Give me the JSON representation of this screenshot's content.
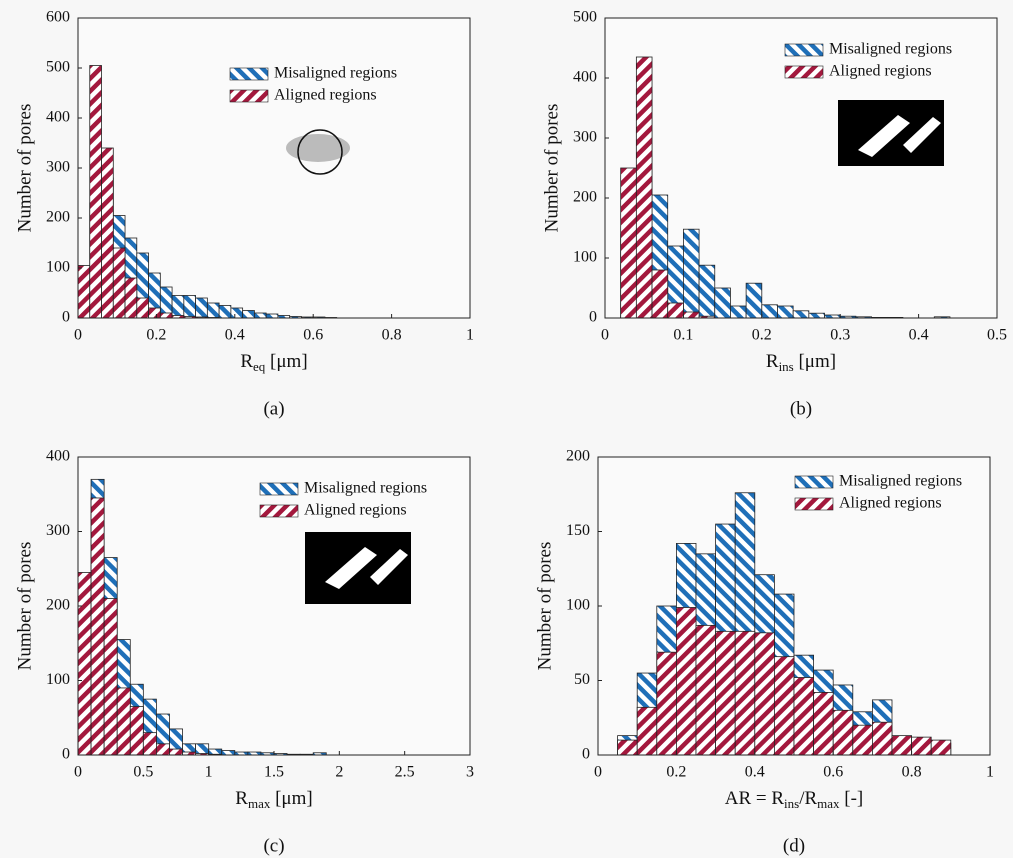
{
  "chart_data": [
    {
      "type": "histogram",
      "caption": "(a)",
      "xlabel": [
        "R",
        "eq",
        " [μm]"
      ],
      "ylabel": "Number of pores",
      "bins": [
        0,
        0.03,
        0.06,
        0.09,
        0.12,
        0.15,
        0.18,
        0.21,
        0.24,
        0.27,
        0.3,
        0.33,
        0.36,
        0.39,
        0.42,
        0.45,
        0.48,
        0.51,
        0.54,
        0.57,
        0.6,
        0.63,
        0.66
      ],
      "series": [
        {
          "name": "Misaligned regions",
          "color": "#1f6fb8",
          "values": [
            60,
            230,
            280,
            205,
            160,
            130,
            90,
            62,
            45,
            45,
            40,
            30,
            25,
            20,
            15,
            10,
            8,
            5,
            3,
            2,
            2,
            1
          ]
        },
        {
          "name": "Aligned regions",
          "color": "#a3183d",
          "values": [
            105,
            505,
            340,
            140,
            80,
            40,
            20,
            10,
            5,
            3,
            2,
            1,
            0,
            0,
            0,
            0,
            0,
            0,
            0,
            0,
            0,
            0
          ]
        }
      ],
      "xlim": [
        0,
        1
      ],
      "ylim": [
        0,
        600
      ],
      "xticks": [
        0,
        0.2,
        0.4,
        0.6,
        0.8,
        1
      ],
      "yticks": [
        0,
        100,
        200,
        300,
        400,
        500,
        600
      ]
    },
    {
      "type": "histogram",
      "caption": "(b)",
      "xlabel": [
        "R",
        "ins",
        " [μm]"
      ],
      "ylabel": "Number of pores",
      "bins": [
        0.02,
        0.04,
        0.06,
        0.08,
        0.1,
        0.12,
        0.14,
        0.16,
        0.18,
        0.2,
        0.22,
        0.24,
        0.26,
        0.28,
        0.3,
        0.32,
        0.34,
        0.36,
        0.38,
        0.4,
        0.42,
        0.44
      ],
      "series": [
        {
          "name": "Misaligned regions",
          "color": "#1f6fb8",
          "values": [
            140,
            380,
            205,
            120,
            148,
            88,
            50,
            20,
            58,
            22,
            20,
            12,
            8,
            5,
            3,
            2,
            1,
            1,
            0,
            0,
            2
          ]
        },
        {
          "name": "Aligned regions",
          "color": "#a3183d",
          "values": [
            250,
            435,
            80,
            25,
            10,
            3,
            0,
            0,
            0,
            0,
            0,
            0,
            0,
            0,
            0,
            0,
            0,
            0,
            0,
            0,
            0
          ]
        }
      ],
      "xlim": [
        0,
        0.5
      ],
      "ylim": [
        0,
        500
      ],
      "xticks": [
        0,
        0.1,
        0.2,
        0.3,
        0.4,
        0.5
      ],
      "yticks": [
        0,
        100,
        200,
        300,
        400,
        500
      ]
    },
    {
      "type": "histogram",
      "caption": "(c)",
      "xlabel": [
        "R",
        "max",
        " [μm]"
      ],
      "ylabel": "Number of pores",
      "bins": [
        0,
        0.1,
        0.2,
        0.3,
        0.4,
        0.5,
        0.6,
        0.7,
        0.8,
        0.9,
        1,
        1.1,
        1.2,
        1.3,
        1.4,
        1.5,
        1.6,
        1.7,
        1.8,
        1.9
      ],
      "series": [
        {
          "name": "Misaligned regions",
          "color": "#1f6fb8",
          "values": [
            130,
            370,
            265,
            155,
            95,
            75,
            55,
            35,
            15,
            15,
            8,
            6,
            4,
            4,
            3,
            2,
            1,
            1,
            3
          ]
        },
        {
          "name": "Aligned regions",
          "color": "#a3183d",
          "values": [
            245,
            345,
            210,
            90,
            65,
            30,
            15,
            8,
            4,
            2,
            1,
            0,
            0,
            0,
            0,
            0,
            0,
            0,
            0
          ]
        }
      ],
      "xlim": [
        0,
        3
      ],
      "ylim": [
        0,
        400
      ],
      "xticks": [
        0,
        0.5,
        1,
        1.5,
        2,
        2.5,
        3
      ],
      "yticks": [
        0,
        100,
        200,
        300,
        400
      ]
    },
    {
      "type": "histogram",
      "caption": "(d)",
      "xlabel": [
        "AR = R",
        "ins",
        "/R",
        "max",
        " [-]"
      ],
      "ylabel": "Number of pores",
      "bins": [
        0.05,
        0.1,
        0.15,
        0.2,
        0.25,
        0.3,
        0.35,
        0.4,
        0.45,
        0.5,
        0.55,
        0.6,
        0.65,
        0.7,
        0.75,
        0.8,
        0.85,
        0.9
      ],
      "series": [
        {
          "name": "Misaligned regions",
          "color": "#1f6fb8",
          "values": [
            13,
            55,
            100,
            142,
            135,
            155,
            176,
            121,
            108,
            67,
            57,
            47,
            29,
            37,
            12,
            10,
            8
          ]
        },
        {
          "name": "Aligned regions",
          "color": "#a3183d",
          "values": [
            10,
            32,
            69,
            99,
            87,
            83,
            83,
            82,
            66,
            52,
            42,
            30,
            20,
            22,
            13,
            12,
            10
          ]
        }
      ],
      "xlim": [
        0,
        1
      ],
      "ylim": [
        0,
        200
      ],
      "xticks": [
        0,
        0.2,
        0.4,
        0.6,
        0.8,
        1
      ],
      "yticks": [
        0,
        50,
        100,
        150,
        200
      ]
    }
  ]
}
